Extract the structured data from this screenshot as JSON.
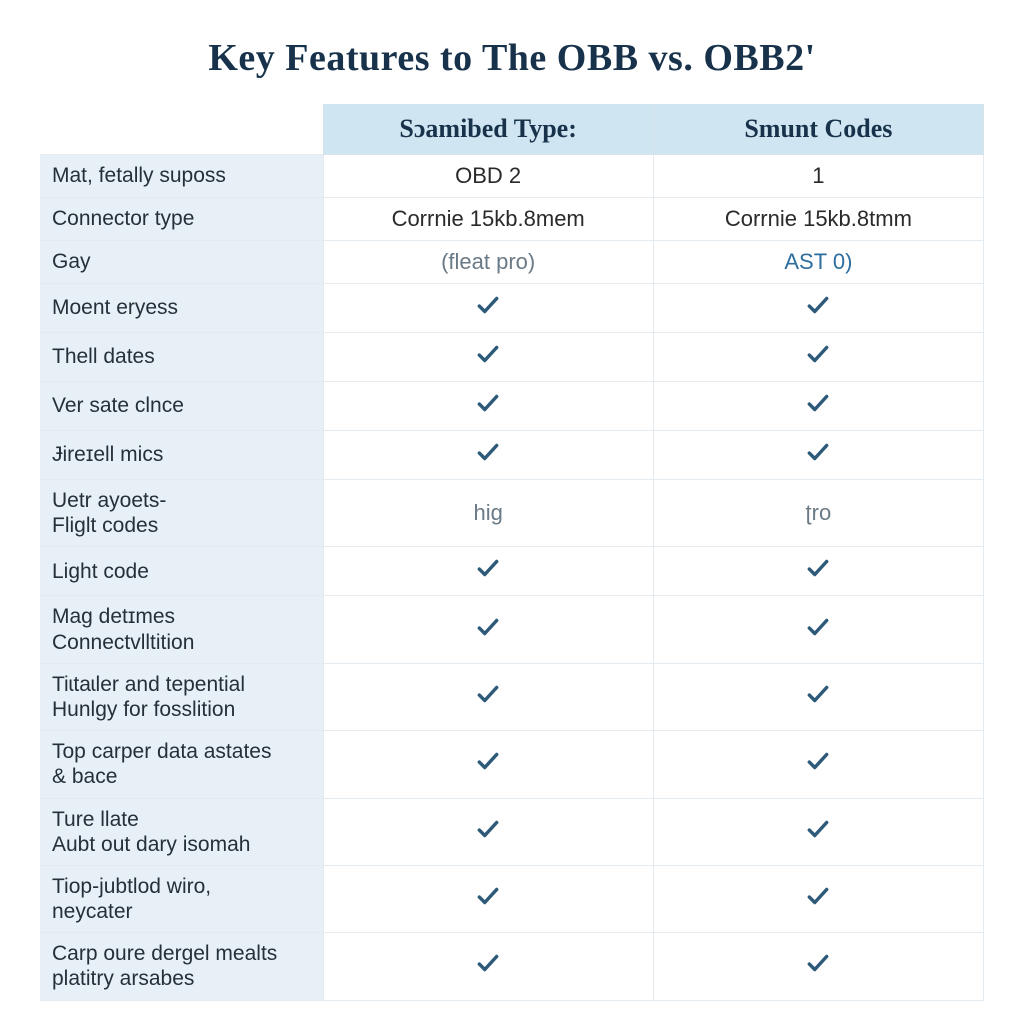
{
  "title": "Key Features to The OBB vs. OBB2'",
  "colors": {
    "title": "#17324a",
    "header_bg": "#cfe5f1",
    "header_text": "#17324a",
    "row_label_bg": "#e7f0f6",
    "row_label_text": "#253038",
    "cell_text": "#2a2a2a",
    "muted_text": "#6a7a86",
    "link_text": "#2e6e9e",
    "border": "#e4ebf0",
    "check_stroke": "#2e5a7a",
    "background": "#ffffff"
  },
  "table": {
    "type": "comparison-table",
    "column_widths_pct": [
      30,
      35,
      35
    ],
    "headers": {
      "label": "",
      "c1": "Sɔamibed Type:",
      "c2": "Smunt Codes"
    },
    "rows": [
      {
        "label": "Mat, fetally suposs",
        "c1": {
          "kind": "text",
          "value": "OBD 2"
        },
        "c2": {
          "kind": "text",
          "value": "1"
        }
      },
      {
        "label": "Connector type",
        "c1": {
          "kind": "text",
          "value": "Corrnie 15kb.8mem"
        },
        "c2": {
          "kind": "text",
          "value": "Corrnie 15kb.8tmm"
        }
      },
      {
        "label": "Gay",
        "c1": {
          "kind": "muted",
          "value": "(fleat pro)"
        },
        "c2": {
          "kind": "link",
          "value": "AST 0)"
        }
      },
      {
        "label": "Moent eryess",
        "c1": {
          "kind": "check"
        },
        "c2": {
          "kind": "check"
        }
      },
      {
        "label": "Thell dates",
        "c1": {
          "kind": "check"
        },
        "c2": {
          "kind": "check"
        }
      },
      {
        "label": "Ver sate clnce",
        "c1": {
          "kind": "check"
        },
        "c2": {
          "kind": "check"
        }
      },
      {
        "label": "Ɉireɪell mics",
        "c1": {
          "kind": "check"
        },
        "c2": {
          "kind": "check"
        }
      },
      {
        "label": "Uetr ayoets-\nFliglt codes",
        "c1": {
          "kind": "muted",
          "value": "hig"
        },
        "c2": {
          "kind": "muted",
          "value": "ʈro"
        }
      },
      {
        "label": "Light code",
        "c1": {
          "kind": "check"
        },
        "c2": {
          "kind": "check"
        }
      },
      {
        "label": "Mag detɪmes\n Connectvlltition",
        "c1": {
          "kind": "check"
        },
        "c2": {
          "kind": "check"
        }
      },
      {
        "label": "Tiɩtaɩler and tepential\n Hunlgy for fosslition",
        "c1": {
          "kind": "check"
        },
        "c2": {
          "kind": "check"
        }
      },
      {
        "label": "Top carper data astates\n& bace",
        "c1": {
          "kind": "check"
        },
        "c2": {
          "kind": "check"
        }
      },
      {
        "label": "Ture llate\nAubt out dary isomah",
        "c1": {
          "kind": "check"
        },
        "c2": {
          "kind": "check"
        }
      },
      {
        "label": "Tiop-jubtlod wiro,\nneycater",
        "c1": {
          "kind": "check"
        },
        "c2": {
          "kind": "check"
        }
      },
      {
        "label": "Carp oure dergel mealts\nplatitry arsabes",
        "c1": {
          "kind": "check"
        },
        "c2": {
          "kind": "check"
        }
      }
    ]
  },
  "typography": {
    "title_fontsize": 38,
    "header_fontsize": 26,
    "label_fontsize": 21,
    "cell_fontsize": 22,
    "title_font": "Georgia/serif",
    "body_font": "Arial/sans-serif"
  }
}
